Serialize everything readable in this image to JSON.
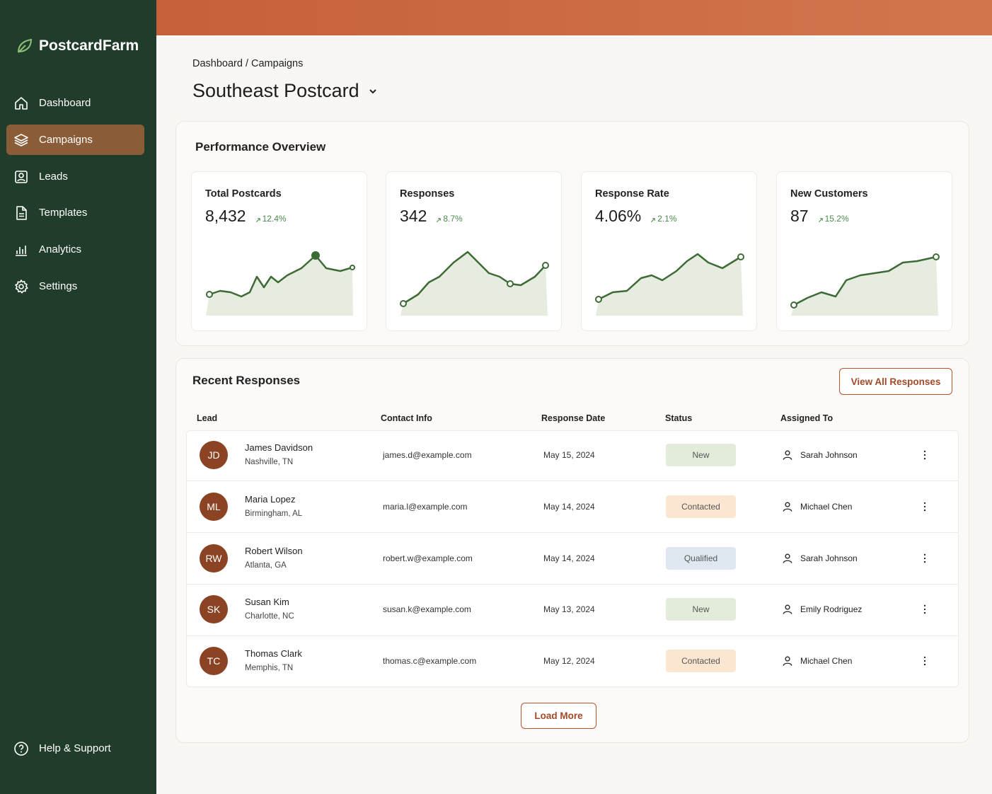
{
  "brand": "PostcardFarm",
  "nav": [
    "Dashboard",
    "Campaigns",
    "Leads",
    "Templates",
    "Analytics",
    "Settings"
  ],
  "help": "Help & Support",
  "breadcrumb": "Dashboard / Campaigns",
  "title": "Southeast Postcard",
  "overview": {
    "title": "Performance Overview",
    "cards": [
      {
        "label": "Total Postcards",
        "value": "8,432",
        "change": "12.4%"
      },
      {
        "label": "Responses",
        "value": "342",
        "change": "8.7%"
      },
      {
        "label": "Response Rate",
        "value": "4.06%",
        "change": "2.1%"
      },
      {
        "label": "New Customers",
        "value": "87",
        "change": "15.2%"
      }
    ]
  },
  "responses": {
    "title": "Recent Responses",
    "button": "View All Responses",
    "columns": [
      "Lead",
      "Contact Info",
      "Response Date",
      "Status",
      "Assigned To"
    ],
    "rows": [
      {
        "initials": "JD",
        "name": "James Davidson",
        "location": "Nashville, TN",
        "email": "james.d@example.com",
        "date": "May 15, 2024",
        "status": "New",
        "status_color": "#e3ecdb",
        "assignee": "Sarah Johnson"
      },
      {
        "initials": "ML",
        "name": "Maria Lopez",
        "location": "Birmingham, AL",
        "email": "maria.l@example.com",
        "date": "May 14, 2024",
        "status": "Contacted",
        "status_color": "#fbe6d2",
        "assignee": "Michael Chen"
      },
      {
        "initials": "RW",
        "name": "Robert Wilson",
        "location": "Atlanta, GA",
        "email": "robert.w@example.com",
        "date": "May 14, 2024",
        "status": "Qualified",
        "status_color": "#dfe8f1",
        "assignee": "Sarah Johnson"
      },
      {
        "initials": "SK",
        "name": "Susan Kim",
        "location": "Charlotte, NC",
        "email": "susan.k@example.com",
        "date": "May 13, 2024",
        "status": "New",
        "status_color": "#e3ecdb",
        "assignee": "Emily Rodriguez"
      },
      {
        "initials": "TC",
        "name": "Thomas Clark",
        "location": "Memphis, TN",
        "email": "thomas.c@example.com",
        "date": "May 12, 2024",
        "status": "Contacted",
        "status_color": "#fbe6d2",
        "assignee": "Michael Chen"
      }
    ],
    "load_more": "Load More"
  }
}
